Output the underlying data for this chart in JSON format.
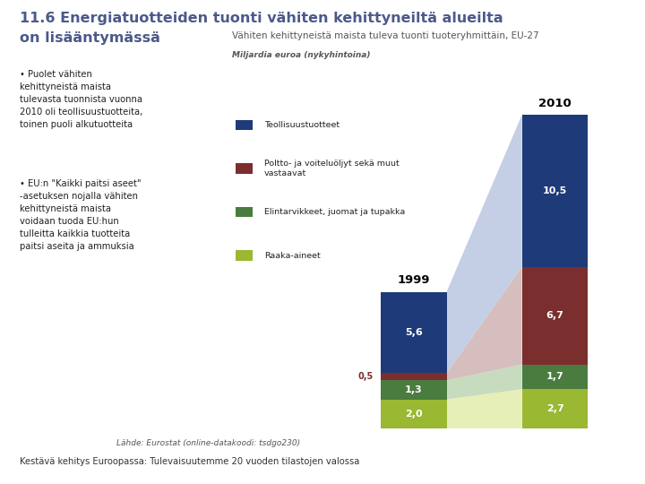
{
  "title_line1": "11.6 Energiatuotteiden tuonti vähiten kehittyneiltä alueilta",
  "title_line2": "on lisääntymässä",
  "subtitle": "Vähiten kehittyneistä maista tuleva tuonti tuoteryhmittäin, EU-27",
  "unit_label": "Miljardia euroa (nykyhintoina)",
  "categories": [
    "Teollisuustuotteet",
    "Poltto- ja voiteluöljyt sekä muut\nvastaavat",
    "Elintarvikkeet, juomat ja tupakka",
    "Raaka-aineet"
  ],
  "values_1999": [
    5.6,
    0.5,
    1.3,
    2.0
  ],
  "values_2010": [
    10.5,
    6.7,
    1.7,
    2.7
  ],
  "stack_order": [
    3,
    2,
    1,
    0
  ],
  "colors": [
    "#1e3a78",
    "#7a2e2e",
    "#4a7c3f",
    "#9ab832"
  ],
  "colors_light": [
    "#b0bedd",
    "#c9a9a9",
    "#b5cfa8",
    "#deeaa0"
  ],
  "label_1999_outside": "0,5",
  "footnote": "Lähde: Eurostat (online-datakoodi: tsdgo230)",
  "footnote_link": "tsdgo230",
  "bottom_text": "Kestävä kehitys Euroopassa: Tulevaisuutemme 20 vuoden tilastojen valossa",
  "bg_color": "#ffffff",
  "title_color": "#4c5a8a",
  "bullet1": "Puolet vähiten\nkehittyneistä maista\ntulevasta tuonnista vuonna\n2010 oli teollisuustuotteita,\ntoinen puoli alkutuotteita",
  "bullet2": "EU:n \"Kaikki paitsi aseet\"\n-asetuksen nojalla vähiten\nkehittyneistä maista\nvoidaan tuoda EU:hun\ntulleitta kaikkia tuotteita\npaitsi aseita ja ammuksia"
}
